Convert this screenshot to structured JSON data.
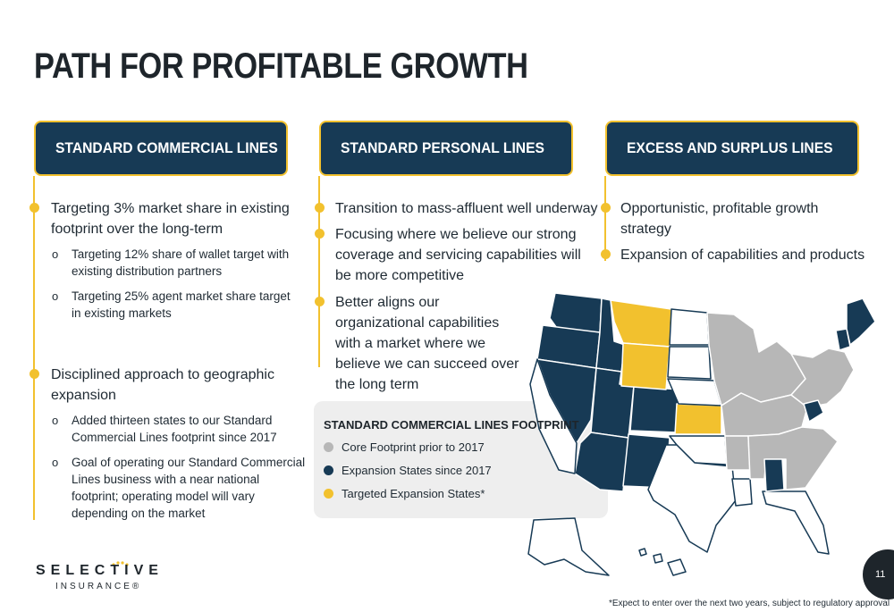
{
  "page": {
    "title": "PATH FOR PROFITABLE GROWTH",
    "page_number": "11",
    "footnote": "*Expect to enter over the next two years, subject to regulatory approval"
  },
  "brand": {
    "name": "SELECTIVE",
    "sub": "INSURANCE®",
    "accent": "#f2c12e",
    "navy": "#173a55",
    "core_gray": "#b7b7b7"
  },
  "columns": [
    {
      "header": "STANDARD COMMERCIAL LINES",
      "bullets": [
        {
          "text": "Targeting 3% market share in existing footprint over the long-term",
          "subs": [
            "Targeting 12% share of wallet target with existing distribution partners",
            "Targeting 25% agent market share target in existing markets"
          ]
        },
        {
          "text": "Disciplined approach to geographic expansion",
          "subs": [
            "Added thirteen states to our Standard Commercial Lines footprint since 2017",
            "Goal of operating our Standard Commercial Lines business with a near national footprint; operating model will vary depending on the market"
          ]
        }
      ]
    },
    {
      "header": "STANDARD PERSONAL LINES",
      "bullets": [
        {
          "text": "Transition to mass-affluent well underway"
        },
        {
          "text": "Focusing where we believe our strong coverage and servicing capabilities will be more competitive"
        },
        {
          "text": "Better aligns our organizational capabilities with a market where we believe we can succeed over the long term"
        }
      ]
    },
    {
      "header": "EXCESS AND SURPLUS LINES",
      "bullets": [
        {
          "text": "Opportunistic, profitable growth strategy"
        },
        {
          "text": "Expansion of capabilities and products"
        }
      ]
    }
  ],
  "legend": {
    "title": "STANDARD COMMERCIAL LINES FOOTPRINT",
    "items": [
      {
        "label": "Core Footprint prior to 2017",
        "color": "#b7b7b7"
      },
      {
        "label": "Expansion States since 2017",
        "color": "#173a55"
      },
      {
        "label": "Targeted Expansion States*",
        "color": "#f2c12e"
      }
    ]
  }
}
